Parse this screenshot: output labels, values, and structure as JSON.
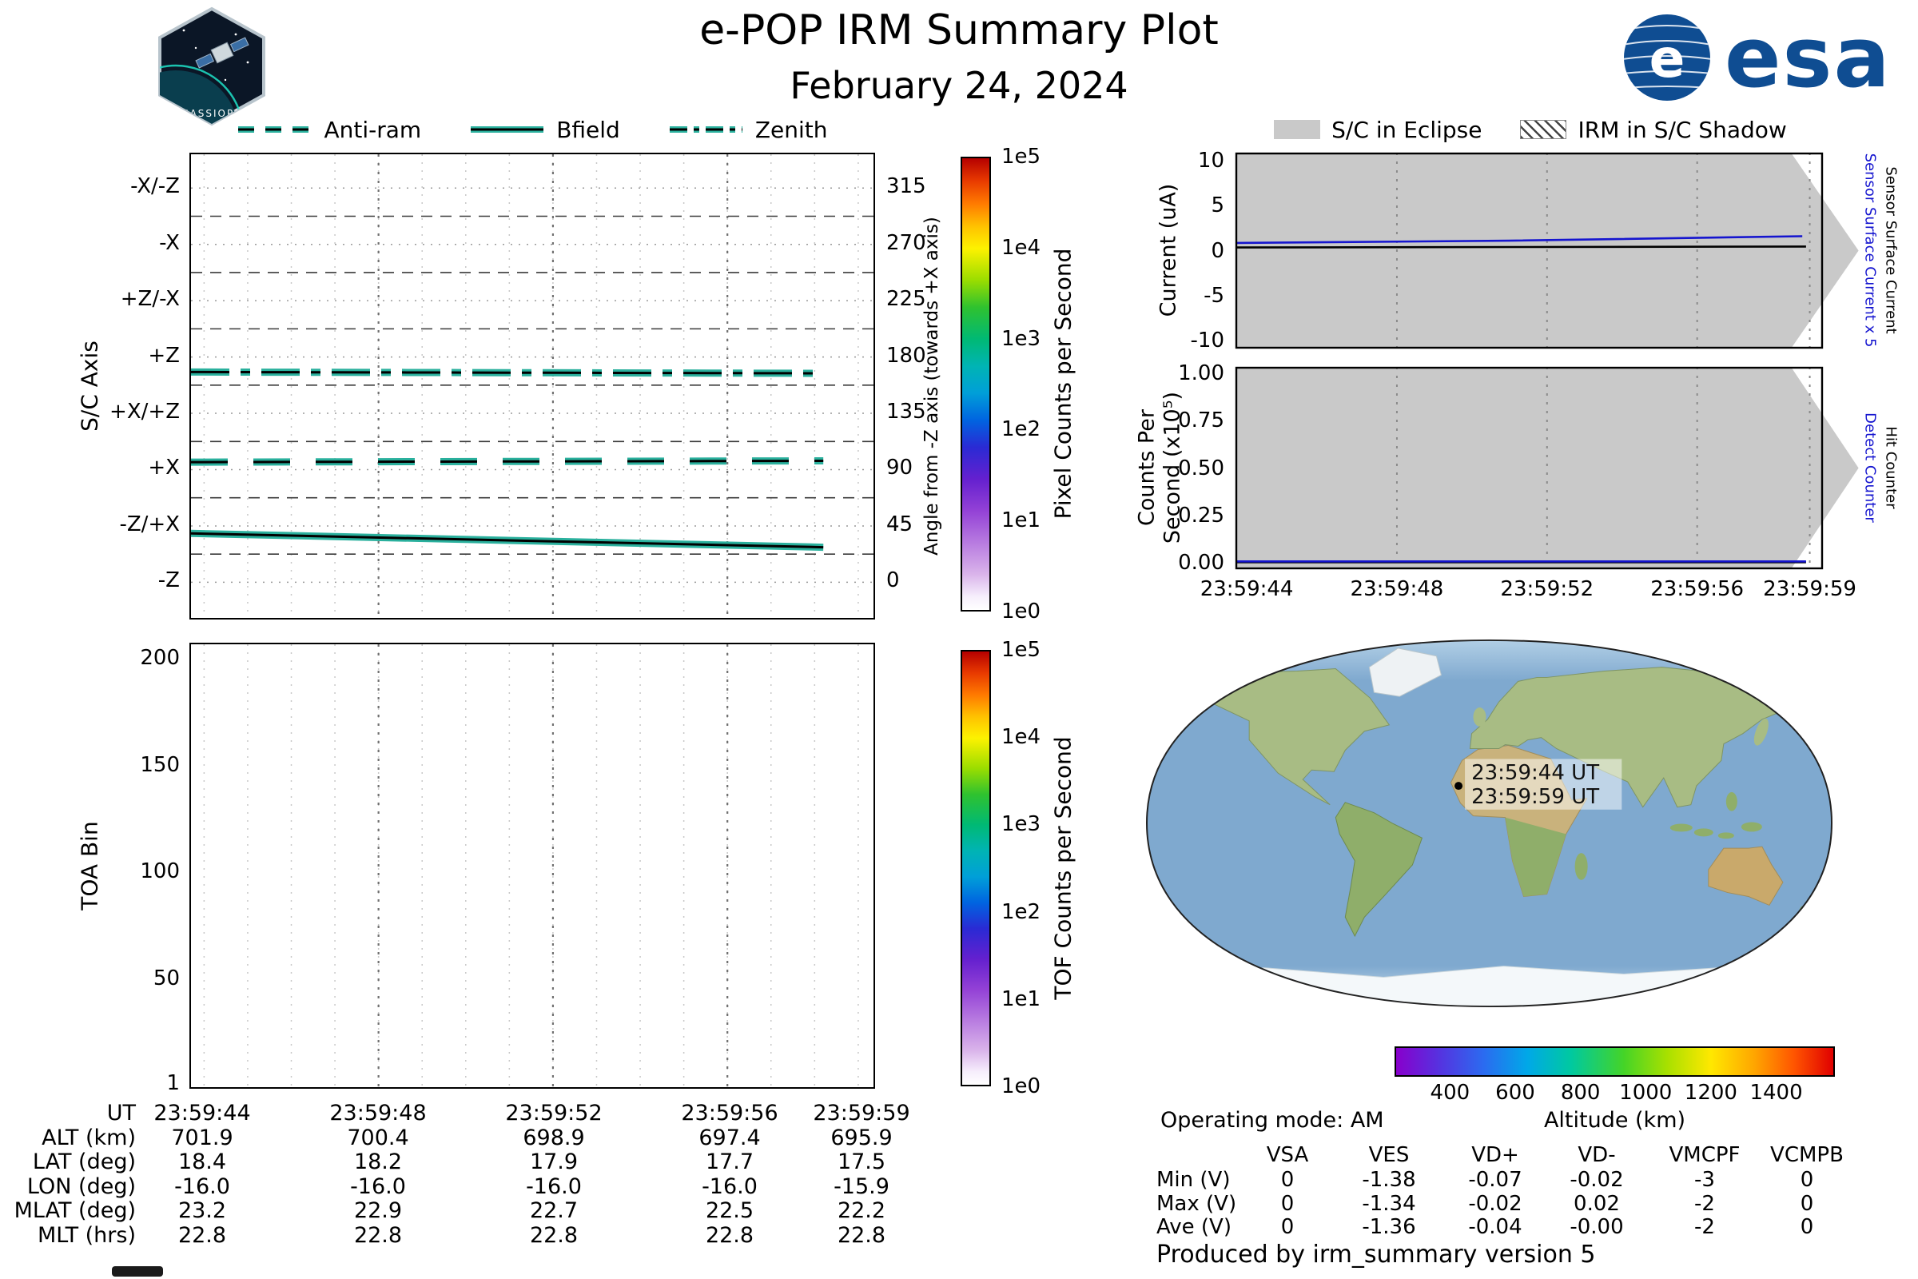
{
  "header": {
    "title": "e-POP IRM Summary Plot",
    "date": "February 24, 2024",
    "esa_logo_text": "esa",
    "esa_globe_letter": "e",
    "cassiope_logo_text": "CASSIOPE"
  },
  "legend_left": {
    "items": [
      {
        "label": "Anti-ram",
        "style": "dashed"
      },
      {
        "label": "Bfield",
        "style": "solid"
      },
      {
        "label": "Zenith",
        "style": "dashdot"
      }
    ]
  },
  "legend_right": {
    "items": [
      {
        "label": "S/C in Eclipse",
        "style": "grayfill"
      },
      {
        "label": "IRM in S/C Shadow",
        "style": "hatch"
      }
    ]
  },
  "colors": {
    "trace_teal": "#2ab09d",
    "trace_core": "#000000",
    "eclipse_gray": "#c9c9c9",
    "blue_series": "#1515cf",
    "esa_blue": "#0f4d92"
  },
  "time_axis": {
    "xlim": [
      43.7,
      59.35
    ],
    "ticks": [
      {
        "t": 44,
        "label": "23:59:44"
      },
      {
        "t": 48,
        "label": "23:59:48"
      },
      {
        "t": 52,
        "label": "23:59:52"
      },
      {
        "t": 56,
        "label": "23:59:56"
      },
      {
        "t": 59,
        "label": "23:59:59"
      }
    ],
    "minor_ticks": [
      44,
      45,
      46,
      47,
      48,
      49,
      50,
      51,
      52,
      53,
      54,
      55,
      56,
      57,
      58,
      59
    ]
  },
  "chart_data": [
    {
      "id": "sc_axis",
      "type": "line",
      "ylabel_left": "S/C Axis",
      "ylabel_right": "Angle from -Z axis (towards +X axis)",
      "ylim": [
        -28.5,
        342
      ],
      "yticks": [
        {
          "angle": 315,
          "axis_label": "-X/-Z"
        },
        {
          "angle": 270,
          "axis_label": "-X"
        },
        {
          "angle": 225,
          "axis_label": "+Z/-X"
        },
        {
          "angle": 180,
          "axis_label": "+Z"
        },
        {
          "angle": 135,
          "axis_label": "+X/+Z"
        },
        {
          "angle": 90,
          "axis_label": "+X"
        },
        {
          "angle": 45,
          "axis_label": "-Z/+X"
        },
        {
          "angle": 0,
          "axis_label": "-Z"
        }
      ],
      "series": [
        {
          "name": "Zenith",
          "style": "dashdot",
          "points": [
            [
              43.7,
              168
            ],
            [
              58.2,
              167
            ]
          ]
        },
        {
          "name": "Anti-ram",
          "style": "dashed",
          "points": [
            [
              43.7,
              96
            ],
            [
              58.2,
              97
            ]
          ]
        },
        {
          "name": "Bfield",
          "style": "solid",
          "points": [
            [
              43.7,
              39
            ],
            [
              58.2,
              28
            ]
          ]
        }
      ]
    },
    {
      "id": "toa_bin",
      "type": "heatmap",
      "ylabel": "TOA Bin",
      "ylim": [
        0,
        207
      ],
      "yticks": [
        1,
        50,
        100,
        150,
        200
      ],
      "values": []
    },
    {
      "id": "current",
      "type": "line",
      "ylabel": "Current (uA)",
      "ylim": [
        -10.9,
        10.9
      ],
      "yticks": [
        10,
        5,
        0,
        -5,
        -10
      ],
      "right_labels": [
        {
          "text": "Sensor Surface Current x 5",
          "color": "#1515cf"
        },
        {
          "text": "Sensor Surface Current",
          "color": "#000000"
        }
      ],
      "series": [
        {
          "name": "Sensor Surface Current",
          "color": "#000000",
          "points": [
            [
              43.7,
              0.35
            ],
            [
              58.9,
              0.45
            ]
          ]
        },
        {
          "name": "Sensor Surface Current x 5",
          "color": "#1515cf",
          "points": [
            [
              43.7,
              0.85
            ],
            [
              51,
              1.1
            ],
            [
              58.8,
              1.6
            ]
          ]
        }
      ],
      "eclipse_region": {
        "t_full_until": 58.5,
        "t_tip": 60.3
      }
    },
    {
      "id": "counts",
      "type": "line",
      "ylabel_line1": "Counts Per",
      "ylabel_line2": "Second (x10⁵)",
      "ylim": [
        -0.035,
        1.035
      ],
      "yticks": [
        "0.00",
        "0.25",
        "0.50",
        "0.75",
        "1.00"
      ],
      "right_labels": [
        {
          "text": "Detect Counter",
          "color": "#1515cf"
        },
        {
          "text": "Hit Counter",
          "color": "#000000"
        }
      ],
      "series": [
        {
          "name": "Hit Counter",
          "color": "#000000",
          "points": [
            [
              43.7,
              0.002
            ],
            [
              58.9,
              0.002
            ]
          ]
        },
        {
          "name": "Detect Counter",
          "color": "#1515cf",
          "points": [
            [
              43.7,
              0.006
            ],
            [
              58.9,
              0.006
            ]
          ]
        }
      ],
      "eclipse_region": {
        "t_full_until": 58.5,
        "t_tip": 60.3
      }
    },
    {
      "id": "ground_track",
      "type": "scatter",
      "points": [
        {
          "lon": -16.0,
          "lat": 18.0
        }
      ],
      "annotation_lines": [
        "23:59:44 UT",
        "23:59:59 UT"
      ]
    },
    {
      "id": "altitude_colorbar",
      "type": "colorbar",
      "label": "Altitude (km)",
      "range": [
        230,
        1580
      ],
      "ticks": [
        400,
        600,
        800,
        1000,
        1200,
        1400
      ]
    }
  ],
  "pixel_colorbar": {
    "label": "Pixel Counts per Second",
    "ticks": [
      "1e5",
      "1e4",
      "1e3",
      "1e2",
      "1e1",
      "1e0"
    ]
  },
  "tof_colorbar": {
    "label": "TOF Counts per Second",
    "ticks": [
      "1e5",
      "1e4",
      "1e3",
      "1e2",
      "1e1",
      "1e0"
    ]
  },
  "ephemeris": {
    "rows": [
      {
        "label": "UT",
        "values": [
          "23:59:44",
          "23:59:48",
          "23:59:52",
          "23:59:56",
          "23:59:59"
        ]
      },
      {
        "label": "ALT (km)",
        "values": [
          "701.9",
          "700.4",
          "698.9",
          "697.4",
          "695.9"
        ]
      },
      {
        "label": "LAT (deg)",
        "values": [
          "18.4",
          "18.2",
          "17.9",
          "17.7",
          "17.5"
        ]
      },
      {
        "label": "LON (deg)",
        "values": [
          "-16.0",
          "-16.0",
          "-16.0",
          "-16.0",
          "-15.9"
        ]
      },
      {
        "label": "MLAT (deg)",
        "values": [
          "23.2",
          "22.9",
          "22.7",
          "22.5",
          "22.2"
        ]
      },
      {
        "label": "MLT (hrs)",
        "values": [
          "22.8",
          "22.8",
          "22.8",
          "22.8",
          "22.8"
        ]
      }
    ]
  },
  "status": {
    "operating_mode": "Operating mode: AM",
    "produced_by": "Produced by irm_summary version 5"
  },
  "voltage_table": {
    "columns": [
      "VSA",
      "VES",
      "VD+",
      "VD-",
      "VMCPF",
      "VCMPB"
    ],
    "rows": [
      {
        "label": "Min (V)",
        "values": [
          "0",
          "-1.38",
          "-0.07",
          "-0.02",
          "-3",
          "0"
        ]
      },
      {
        "label": "Max (V)",
        "values": [
          "0",
          "-1.34",
          "-0.02",
          "0.02",
          "-2",
          "0"
        ]
      },
      {
        "label": "Ave (V)",
        "values": [
          "0",
          "-1.36",
          "-0.04",
          "-0.00",
          "-2",
          "0"
        ]
      }
    ]
  }
}
